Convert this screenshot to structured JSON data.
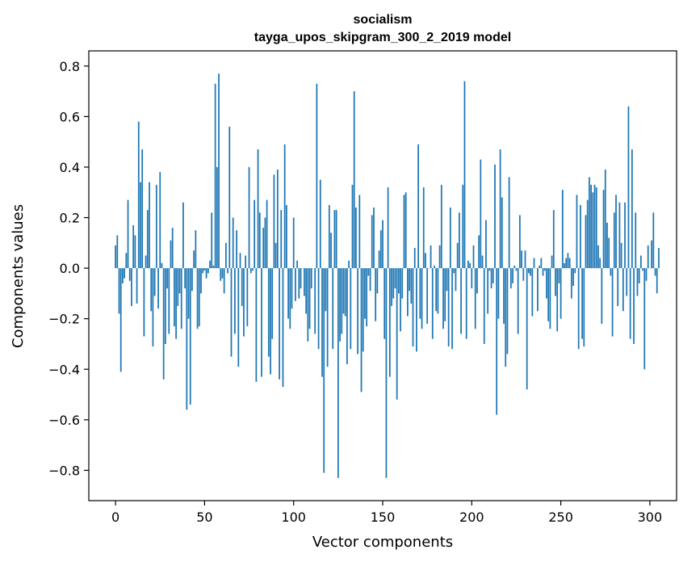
{
  "chart_data": {
    "type": "bar",
    "title": "socialism",
    "subtitle": "tayga_upos_skipgram_300_2_2019 model",
    "xlabel": "Vector components",
    "ylabel": "Components values",
    "xlim": [
      -15,
      315
    ],
    "ylim": [
      -0.92,
      0.86
    ],
    "xticks": [
      0,
      50,
      100,
      150,
      200,
      250,
      300
    ],
    "yticks": [
      -0.8,
      -0.6,
      -0.4,
      -0.2,
      0.0,
      0.2,
      0.4,
      0.6,
      0.8
    ],
    "ytick_labels": [
      "−0.8",
      "−0.6",
      "−0.4",
      "−0.2",
      "0.0",
      "0.2",
      "0.4",
      "0.6",
      "0.8"
    ],
    "grid": false,
    "values": [
      0.09,
      0.13,
      -0.18,
      -0.41,
      -0.06,
      -0.04,
      0.06,
      0.27,
      -0.05,
      -0.15,
      0.17,
      0.13,
      -0.14,
      0.58,
      0.34,
      0.47,
      -0.27,
      0.05,
      0.23,
      0.34,
      -0.17,
      -0.31,
      -0.11,
      0.33,
      -0.16,
      0.38,
      0.02,
      -0.44,
      -0.3,
      -0.08,
      -0.26,
      0.11,
      0.16,
      -0.23,
      -0.28,
      -0.15,
      -0.1,
      -0.24,
      0.26,
      -0.08,
      -0.56,
      -0.2,
      -0.54,
      -0.09,
      0.07,
      0.15,
      -0.24,
      -0.23,
      -0.1,
      -0.02,
      -0.01,
      -0.04,
      -0.02,
      0.03,
      0.22,
      0.01,
      0.73,
      0.4,
      0.77,
      -0.05,
      -0.04,
      -0.1,
      0.1,
      -0.02,
      0.56,
      -0.35,
      0.2,
      -0.26,
      0.15,
      -0.39,
      0.06,
      -0.15,
      -0.27,
      0.05,
      -0.23,
      0.4,
      -0.02,
      -0.01,
      0.27,
      -0.45,
      0.47,
      0.22,
      -0.43,
      0.16,
      0.2,
      0.27,
      -0.35,
      -0.42,
      -0.28,
      0.37,
      0.1,
      0.39,
      -0.44,
      0.23,
      -0.47,
      0.49,
      0.25,
      -0.2,
      -0.24,
      -0.16,
      0.2,
      -0.13,
      0.03,
      -0.12,
      -0.08,
      0.0,
      -0.11,
      -0.18,
      -0.29,
      -0.24,
      -0.08,
      0.0,
      -0.26,
      0.73,
      -0.32,
      0.35,
      -0.43,
      -0.81,
      -0.17,
      -0.39,
      0.25,
      0.14,
      -0.32,
      0.23,
      0.23,
      -0.83,
      -0.29,
      -0.26,
      -0.18,
      -0.19,
      -0.38,
      0.03,
      -0.32,
      0.33,
      0.7,
      0.24,
      -0.34,
      0.29,
      -0.49,
      -0.33,
      -0.2,
      -0.23,
      -0.03,
      -0.09,
      0.21,
      0.24,
      -0.21,
      -0.1,
      0.07,
      0.15,
      0.19,
      -0.28,
      -0.83,
      0.32,
      -0.43,
      -0.15,
      -0.12,
      -0.08,
      -0.52,
      -0.1,
      -0.25,
      -0.12,
      0.29,
      0.3,
      -0.19,
      -0.09,
      -0.14,
      -0.31,
      0.08,
      -0.33,
      0.49,
      -0.2,
      -0.24,
      0.32,
      0.06,
      -0.22,
      0.0,
      0.09,
      -0.28,
      0.01,
      -0.17,
      -0.18,
      0.09,
      0.33,
      -0.24,
      -0.21,
      -0.09,
      -0.31,
      0.24,
      -0.32,
      -0.02,
      -0.09,
      0.1,
      0.22,
      -0.26,
      0.33,
      0.74,
      -0.28,
      0.03,
      0.02,
      -0.08,
      0.09,
      -0.24,
      -0.1,
      0.13,
      0.43,
      0.05,
      -0.3,
      0.19,
      -0.18,
      -0.01,
      -0.08,
      -0.06,
      0.41,
      -0.58,
      -0.2,
      0.47,
      0.28,
      -0.22,
      -0.39,
      -0.34,
      0.36,
      -0.08,
      -0.06,
      0.01,
      -0.01,
      -0.26,
      0.21,
      0.07,
      -0.05,
      0.07,
      -0.48,
      -0.02,
      -0.03,
      -0.19,
      0.04,
      0.0,
      -0.17,
      0.01,
      0.04,
      -0.03,
      -0.01,
      -0.12,
      -0.21,
      -0.24,
      0.05,
      0.23,
      -0.11,
      -0.25,
      -0.06,
      -0.2,
      0.31,
      0.02,
      0.04,
      0.06,
      0.04,
      -0.12,
      -0.07,
      -0.02,
      0.29,
      -0.32,
      0.25,
      -0.28,
      -0.31,
      0.21,
      0.27,
      0.36,
      0.33,
      0.3,
      0.33,
      0.32,
      0.09,
      0.04,
      -0.22,
      0.31,
      0.39,
      0.18,
      0.12,
      -0.03,
      -0.27,
      0.22,
      0.29,
      -0.15,
      0.26,
      0.1,
      -0.17,
      0.26,
      -0.11,
      0.64,
      -0.28,
      0.47,
      -0.3,
      0.22,
      -0.11,
      -0.06,
      0.05,
      -0.01,
      -0.4,
      -0.05,
      0.09,
      0.0,
      0.11,
      0.22,
      -0.03,
      -0.1,
      0.08
    ]
  }
}
